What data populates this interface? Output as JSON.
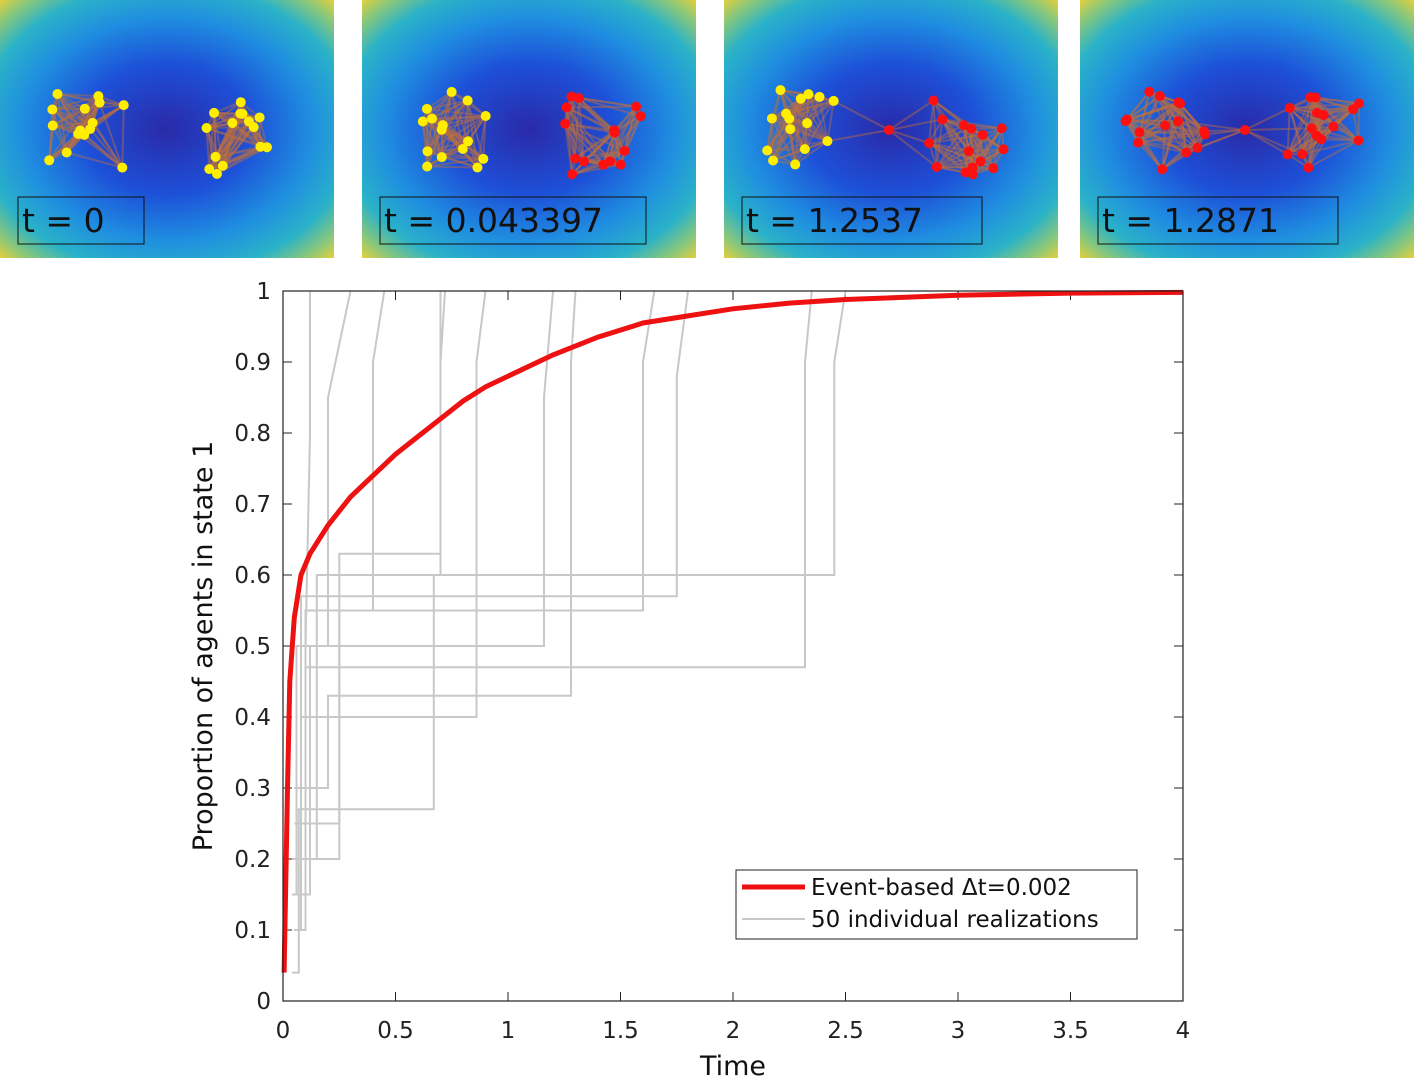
{
  "panels": [
    {
      "label": "t = 0"
    },
    {
      "label": "t = 0.043397"
    },
    {
      "label": "t = 1.2537"
    },
    {
      "label": "t = 1.2871"
    }
  ],
  "chart_data": {
    "type": "line",
    "xlabel": "Time",
    "ylabel": "Proportion of agents in state 1",
    "xlim": [
      0,
      4
    ],
    "ylim": [
      0,
      1
    ],
    "xticks": [
      0,
      0.5,
      1,
      1.5,
      2,
      2.5,
      3,
      3.5,
      4
    ],
    "yticks": [
      0,
      0.1,
      0.2,
      0.3,
      0.4,
      0.5,
      0.6,
      0.7,
      0.8,
      0.9,
      1
    ],
    "legend": "lower right",
    "series": [
      {
        "name": "Event-based Δt=0.002",
        "color": "#ee1111",
        "x": [
          0.005,
          0.02,
          0.03,
          0.05,
          0.08,
          0.12,
          0.2,
          0.3,
          0.4,
          0.5,
          0.6,
          0.7,
          0.8,
          0.9,
          1.0,
          1.2,
          1.4,
          1.6,
          1.8,
          2.0,
          2.25,
          2.5,
          3.0,
          3.5,
          4.0
        ],
        "values": [
          0.04,
          0.3,
          0.45,
          0.54,
          0.6,
          0.63,
          0.67,
          0.71,
          0.74,
          0.77,
          0.795,
          0.82,
          0.845,
          0.865,
          0.88,
          0.91,
          0.935,
          0.955,
          0.965,
          0.975,
          0.983,
          0.988,
          0.994,
          0.997,
          0.998
        ]
      },
      {
        "name": "50 individual realizations",
        "color": "#c8c8c8",
        "lines": [
          {
            "x": [
              0.04,
              0.07,
              0.07,
              0.67,
              0.67,
              0.7,
              0.7
            ],
            "values": [
              0.04,
              0.04,
              0.27,
              0.27,
              0.6,
              0.6,
              1
            ]
          },
          {
            "x": [
              0.05,
              0.1,
              0.1,
              2.32,
              2.32,
              2.35
            ],
            "values": [
              0.1,
              0.1,
              0.47,
              0.47,
              0.9,
              1
            ]
          },
          {
            "x": [
              0.06,
              0.15,
              0.15,
              2.45,
              2.45,
              2.5
            ],
            "values": [
              0.2,
              0.2,
              0.6,
              0.6,
              0.9,
              1
            ]
          },
          {
            "x": [
              0.05,
              0.2,
              0.2,
              1.28,
              1.28,
              1.3
            ],
            "values": [
              0.3,
              0.3,
              0.43,
              0.43,
              0.9,
              1
            ]
          },
          {
            "x": [
              0.05,
              0.08,
              0.08,
              0.86,
              0.86,
              0.9
            ],
            "values": [
              0.1,
              0.1,
              0.4,
              0.4,
              0.9,
              1
            ]
          },
          {
            "x": [
              0.04,
              0.12,
              0.12,
              1.16,
              1.16,
              1.2
            ],
            "values": [
              0.15,
              0.15,
              0.5,
              0.5,
              0.85,
              1
            ]
          },
          {
            "x": [
              0.04,
              0.25,
              0.25,
              0.7,
              0.7,
              0.72
            ],
            "values": [
              0.2,
              0.2,
              0.63,
              0.63,
              0.9,
              1
            ]
          },
          {
            "x": [
              0.05,
              0.25,
              0.25,
              1.6,
              1.6,
              1.65
            ],
            "values": [
              0.25,
              0.25,
              0.55,
              0.55,
              0.9,
              1
            ]
          },
          {
            "x": [
              0.05,
              0.1,
              0.1,
              0.4,
              0.4,
              0.45
            ],
            "values": [
              0.1,
              0.1,
              0.55,
              0.55,
              0.9,
              1
            ]
          },
          {
            "x": [
              0.04,
              0.06,
              0.06,
              0.2,
              0.2,
              0.3
            ],
            "values": [
              0.15,
              0.15,
              0.5,
              0.5,
              0.85,
              1
            ]
          },
          {
            "x": [
              0.05,
              0.08,
              0.08,
              1.75,
              1.75,
              1.8
            ],
            "values": [
              0.2,
              0.2,
              0.57,
              0.57,
              0.88,
              1
            ]
          },
          {
            "x": [
              0.04,
              0.1,
              0.1,
              0.12,
              0.12
            ],
            "values": [
              0.2,
              0.2,
              0.5,
              0.8,
              1
            ]
          }
        ]
      }
    ]
  }
}
